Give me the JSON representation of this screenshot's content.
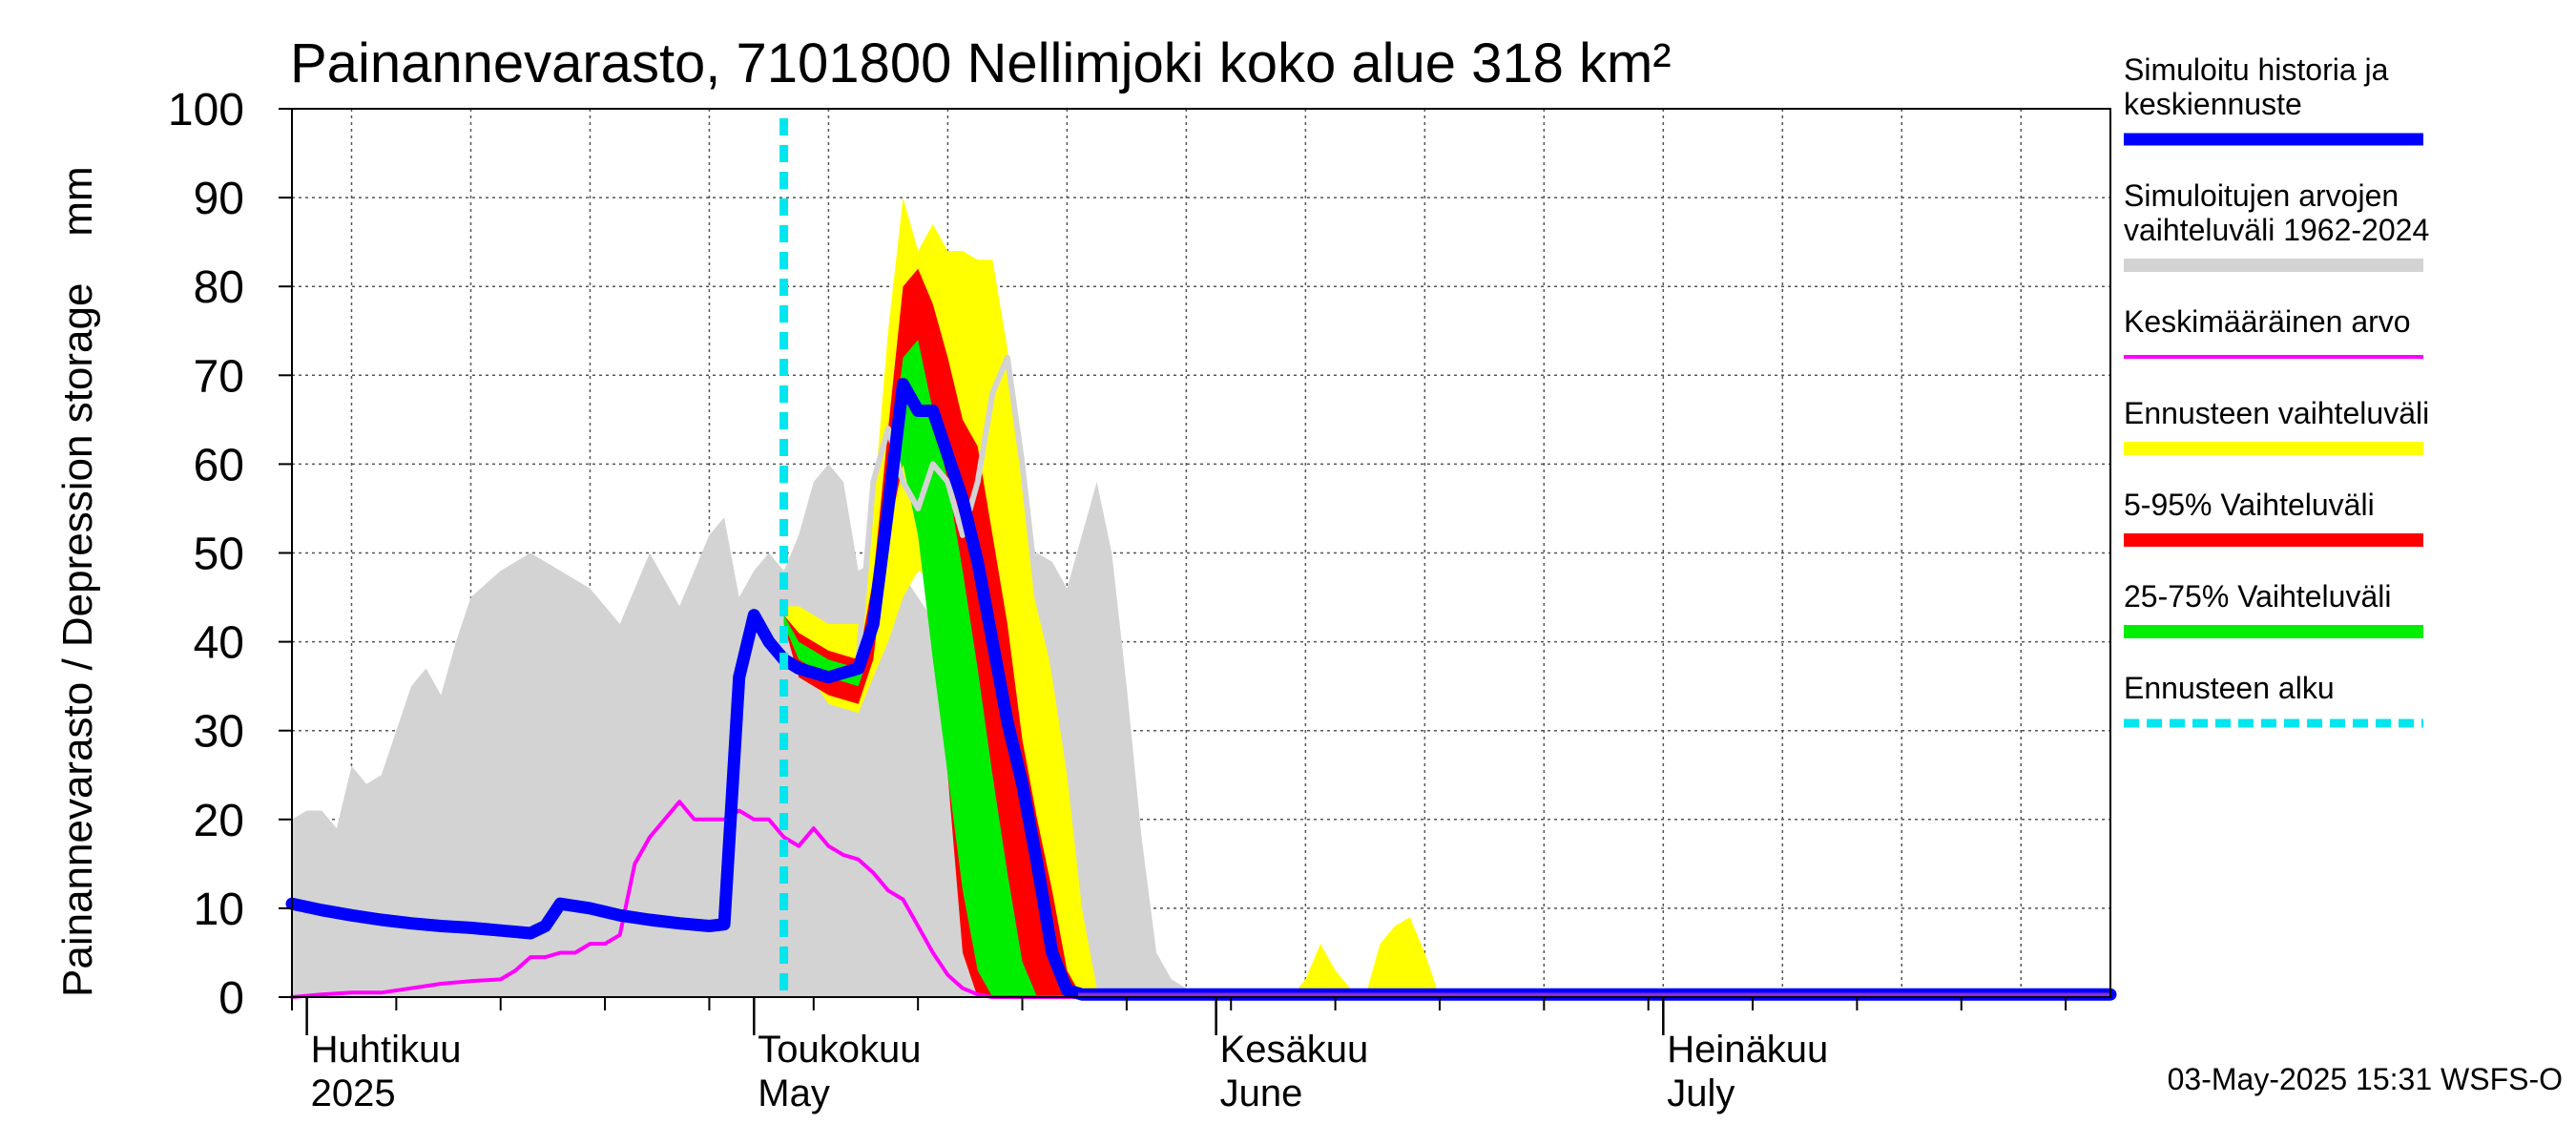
{
  "chart_data": {
    "type": "area",
    "title": "Painannevarasto, 7101800 Nellimjoki koko alue 318 km²",
    "ylabel": "Painannevarasto / Depression storage    mm",
    "xlabel": "",
    "ylim": [
      0,
      100
    ],
    "xlim": [
      "2025-03-31",
      "2025-07-31"
    ],
    "yticks": [
      0,
      10,
      20,
      30,
      40,
      50,
      60,
      70,
      80,
      90,
      100
    ],
    "month_labels": [
      {
        "date": "2025-04-01",
        "line1": "Huhtikuu",
        "line2": "2025"
      },
      {
        "date": "2025-05-01",
        "line1": "Toukokuu",
        "line2": "May"
      },
      {
        "date": "2025-06-01",
        "line1": "Kesäkuu",
        "line2": "June"
      },
      {
        "date": "2025-07-01",
        "line1": "Heinäkuu",
        "line2": "July"
      }
    ],
    "forecast_start": "2025-05-03",
    "grid": true,
    "legend_placement": "right",
    "legend": [
      {
        "label": "Simuloitu historia ja keskiennuste",
        "lines": [
          "Simuloitu historia ja",
          "keskiennuste"
        ],
        "color": "#0000ff",
        "style": "thick"
      },
      {
        "label": "Simuloitujen arvojen vaihteluväli 1962-2024",
        "lines": [
          "Simuloitujen arvojen",
          "vaihteluväli 1962-2024"
        ],
        "color": "#d3d3d3",
        "style": "band"
      },
      {
        "label": "Keskimääräinen arvo",
        "lines": [
          "Keskimääräinen arvo"
        ],
        "color": "#ff00ff",
        "style": "thin"
      },
      {
        "label": "Ennusteen vaihteluväli",
        "lines": [
          "Ennusteen vaihteluväli"
        ],
        "color": "#ffff00",
        "style": "band"
      },
      {
        "label": "5-95% Vaihteluväli",
        "lines": [
          "5-95% Vaihteluväli"
        ],
        "color": "#ff0000",
        "style": "band"
      },
      {
        "label": "25-75% Vaihteluväli",
        "lines": [
          "25-75% Vaihteluväli"
        ],
        "color": "#00ee00",
        "style": "band"
      },
      {
        "label": "Ennusteen alku",
        "lines": [
          "Ennusteen alku"
        ],
        "color": "#00e5ee",
        "style": "dashed"
      }
    ],
    "footer": "03-May-2025 15:31 WSFS-O",
    "series": [
      {
        "name": "Simuloitujen arvojen vaihteluväli 1962-2024",
        "type": "band",
        "color": "#d3d3d3",
        "x": [
          "2025-03-31",
          "2025-04-01",
          "2025-04-02",
          "2025-04-03",
          "2025-04-04",
          "2025-04-05",
          "2025-04-06",
          "2025-04-07",
          "2025-04-08",
          "2025-04-09",
          "2025-04-10",
          "2025-04-11",
          "2025-04-12",
          "2025-04-14",
          "2025-04-16",
          "2025-04-18",
          "2025-04-20",
          "2025-04-22",
          "2025-04-24",
          "2025-04-26",
          "2025-04-28",
          "2025-04-29",
          "2025-04-30",
          "2025-05-01",
          "2025-05-02",
          "2025-05-03",
          "2025-05-04",
          "2025-05-05",
          "2025-05-06",
          "2025-05-07",
          "2025-05-08",
          "2025-05-10",
          "2025-05-12",
          "2025-05-14",
          "2025-05-16",
          "2025-05-18",
          "2025-05-20",
          "2025-05-21",
          "2025-05-22",
          "2025-05-23",
          "2025-05-24",
          "2025-05-25",
          "2025-05-26",
          "2025-05-27",
          "2025-05-28",
          "2025-05-29",
          "2025-05-30",
          "2025-05-31",
          "2025-06-01",
          "2025-06-02",
          "2025-06-03",
          "2025-06-04",
          "2025-06-05",
          "2025-06-06",
          "2025-06-07",
          "2025-06-08",
          "2025-06-09",
          "2025-06-10",
          "2025-06-11",
          "2025-06-12",
          "2025-06-13",
          "2025-06-14",
          "2025-06-15",
          "2025-06-16",
          "2025-07-31"
        ],
        "upper": [
          20,
          21,
          21,
          19,
          26,
          24,
          25,
          30,
          35,
          37,
          34,
          40,
          45,
          48,
          50,
          48,
          46,
          42,
          50,
          44,
          52,
          54,
          45,
          48,
          50,
          48,
          52,
          58,
          60,
          58,
          48,
          50,
          45,
          40,
          38,
          45,
          50,
          49,
          46,
          52,
          58,
          50,
          35,
          18,
          5,
          2,
          1,
          1,
          1,
          1,
          0,
          0,
          0,
          0,
          0,
          0,
          0,
          0,
          0,
          0,
          0,
          0,
          0,
          0,
          0
        ],
        "lower": [
          0,
          0,
          0,
          0,
          0,
          0,
          0,
          0,
          0,
          0,
          0,
          0,
          0,
          0,
          0,
          0,
          0,
          0,
          0,
          0,
          0,
          0,
          0,
          0,
          0,
          0,
          0,
          0,
          0,
          0,
          0,
          0,
          0,
          0,
          0,
          0,
          0,
          0,
          0,
          0,
          0,
          0,
          0,
          0,
          0,
          0,
          0,
          0,
          0,
          0,
          0,
          0,
          0,
          0,
          0,
          0,
          0,
          0,
          0,
          0,
          0,
          0,
          0,
          0,
          0
        ]
      },
      {
        "name": "Ennusteen vaihteluväli",
        "type": "band",
        "color": "#ffff00",
        "x": [
          "2025-05-03",
          "2025-05-04",
          "2025-05-06",
          "2025-05-08",
          "2025-05-09",
          "2025-05-10",
          "2025-05-11",
          "2025-05-12",
          "2025-05-13",
          "2025-05-14",
          "2025-05-15",
          "2025-05-16",
          "2025-05-17",
          "2025-05-18",
          "2025-05-19",
          "2025-05-20",
          "2025-05-21",
          "2025-05-22",
          "2025-05-23",
          "2025-05-24",
          "2025-05-25",
          "2025-05-26",
          "2025-05-27",
          "2025-05-28",
          "2025-05-29",
          "2025-05-30",
          "2025-05-31",
          "2025-06-01",
          "2025-06-02",
          "2025-06-03",
          "2025-06-04",
          "2025-06-05",
          "2025-06-06",
          "2025-06-07",
          "2025-06-08",
          "2025-06-09",
          "2025-06-10",
          "2025-06-11",
          "2025-06-12",
          "2025-06-13",
          "2025-06-14",
          "2025-06-15",
          "2025-06-16",
          "2025-07-31"
        ],
        "upper": [
          44,
          44,
          42,
          42,
          55,
          75,
          90,
          84,
          87,
          84,
          84,
          83,
          83,
          73,
          57,
          46,
          36,
          25,
          10,
          1,
          0,
          0,
          0,
          0,
          0,
          0,
          0,
          0,
          0,
          0,
          0,
          0,
          0,
          2,
          6,
          3,
          1,
          0,
          6,
          8,
          9,
          5,
          0,
          0
        ],
        "lower": [
          42,
          38,
          33,
          32,
          36,
          40,
          45,
          48,
          47,
          30,
          10,
          2,
          0,
          0,
          0,
          0,
          0,
          0,
          0,
          0,
          0,
          0,
          0,
          0,
          0,
          0,
          0,
          0,
          0,
          0,
          0,
          0,
          0,
          0,
          0,
          0,
          0,
          0,
          0,
          0,
          0,
          0,
          0,
          0
        ]
      },
      {
        "name": "5-95% Vaihteluväli",
        "type": "band",
        "color": "#ff0000",
        "x": [
          "2025-05-03",
          "2025-05-04",
          "2025-05-06",
          "2025-05-08",
          "2025-05-09",
          "2025-05-10",
          "2025-05-11",
          "2025-05-12",
          "2025-05-13",
          "2025-05-14",
          "2025-05-15",
          "2025-05-16",
          "2025-05-17",
          "2025-05-18",
          "2025-05-19",
          "2025-05-20",
          "2025-05-21",
          "2025-05-22",
          "2025-05-23",
          "2025-05-24",
          "2025-05-25",
          "2025-05-26",
          "2025-07-31"
        ],
        "upper": [
          43,
          41,
          39,
          38,
          47,
          64,
          80,
          82,
          78,
          72,
          65,
          62,
          52,
          42,
          29,
          20,
          12,
          3,
          0,
          0,
          0,
          0,
          0
        ],
        "lower": [
          42,
          36,
          34,
          33,
          38,
          52,
          60,
          58,
          42,
          25,
          5,
          0,
          0,
          0,
          0,
          0,
          0,
          0,
          0,
          0,
          0,
          0,
          0
        ]
      },
      {
        "name": "25-75% Vaihteluväli",
        "type": "band",
        "color": "#00ee00",
        "x": [
          "2025-05-03",
          "2025-05-04",
          "2025-05-06",
          "2025-05-08",
          "2025-05-09",
          "2025-05-10",
          "2025-05-11",
          "2025-05-12",
          "2025-05-13",
          "2025-05-14",
          "2025-05-15",
          "2025-05-16",
          "2025-05-17",
          "2025-05-18",
          "2025-05-19",
          "2025-05-20",
          "2025-05-21",
          "2025-05-22",
          "2025-07-31"
        ],
        "upper": [
          43,
          40,
          38,
          37,
          44,
          58,
          72,
          74,
          66,
          58,
          48,
          37,
          25,
          14,
          4,
          0,
          0,
          0,
          0
        ],
        "lower": [
          42,
          38,
          36,
          35,
          40,
          55,
          60,
          52,
          38,
          25,
          12,
          3,
          0,
          0,
          0,
          0,
          0,
          0,
          0
        ]
      },
      {
        "name": "Keskimääräinen arvo",
        "type": "line",
        "color": "#ff00ff",
        "x": [
          "2025-03-31",
          "2025-04-02",
          "2025-04-04",
          "2025-04-06",
          "2025-04-08",
          "2025-04-10",
          "2025-04-12",
          "2025-04-14",
          "2025-04-15",
          "2025-04-16",
          "2025-04-17",
          "2025-04-18",
          "2025-04-19",
          "2025-04-20",
          "2025-04-21",
          "2025-04-22",
          "2025-04-23",
          "2025-04-24",
          "2025-04-25",
          "2025-04-26",
          "2025-04-27",
          "2025-04-28",
          "2025-04-29",
          "2025-04-30",
          "2025-05-01",
          "2025-05-02",
          "2025-05-03",
          "2025-05-04",
          "2025-05-05",
          "2025-05-06",
          "2025-05-07",
          "2025-05-08",
          "2025-05-09",
          "2025-05-10",
          "2025-05-11",
          "2025-05-12",
          "2025-05-13",
          "2025-05-14",
          "2025-05-15",
          "2025-05-16",
          "2025-05-17",
          "2025-05-18",
          "2025-05-19",
          "2025-05-20",
          "2025-05-21",
          "2025-05-22",
          "2025-07-31"
        ],
        "values": [
          0,
          0.3,
          0.5,
          0.5,
          1,
          1.5,
          1.8,
          2,
          3,
          4.5,
          4.5,
          5,
          5,
          6,
          6,
          7,
          15,
          18,
          20,
          22,
          20,
          20,
          20,
          21,
          20,
          20,
          18,
          17,
          19,
          17,
          16,
          15.5,
          14,
          12,
          11,
          8,
          5,
          2.5,
          1,
          0.3,
          0,
          0,
          0,
          0,
          0,
          0,
          0
        ]
      },
      {
        "name": "",
        "type": "line",
        "color": "#d3d3d3",
        "x": [
          "2025-05-08",
          "2025-05-09",
          "2025-05-10",
          "2025-05-11",
          "2025-05-12",
          "2025-05-13",
          "2025-05-14",
          "2025-05-15",
          "2025-05-16",
          "2025-05-17",
          "2025-05-18",
          "2025-05-19",
          "2025-05-20",
          "2025-05-21",
          "2025-05-22",
          "2025-05-23",
          "2025-05-24",
          "2025-05-25",
          "2025-05-26",
          "2025-05-27",
          "2025-05-28",
          "2025-05-29",
          "2025-05-30",
          "2025-05-31",
          "2025-06-01",
          "2025-06-02",
          "2025-06-03",
          "2025-06-04",
          "2025-06-05",
          "2025-06-06",
          "2025-06-07",
          "2025-06-08",
          "2025-06-09",
          "2025-06-10",
          "2025-06-11",
          "2025-06-12",
          "2025-06-13",
          "2025-06-14",
          "2025-06-15",
          "2025-06-16",
          "2025-07-31"
        ],
        "values": [
          38,
          58,
          64,
          58,
          55,
          60,
          58,
          52,
          58,
          68,
          72,
          60,
          45,
          38,
          35,
          37,
          38,
          25,
          10,
          2,
          0,
          0,
          0,
          0,
          0,
          0,
          0,
          0,
          0,
          0,
          0,
          0,
          0,
          0,
          0,
          0,
          0,
          0,
          0,
          0,
          0
        ]
      },
      {
        "name": "Simuloitu historia ja keskiennuste",
        "type": "line",
        "color": "#0000ff",
        "x": [
          "2025-03-31",
          "2025-04-02",
          "2025-04-04",
          "2025-04-06",
          "2025-04-08",
          "2025-04-10",
          "2025-04-12",
          "2025-04-14",
          "2025-04-16",
          "2025-04-17",
          "2025-04-18",
          "2025-04-20",
          "2025-04-22",
          "2025-04-24",
          "2025-04-26",
          "2025-04-28",
          "2025-04-29",
          "2025-04-30",
          "2025-05-01",
          "2025-05-02",
          "2025-05-03",
          "2025-05-04",
          "2025-05-06",
          "2025-05-08",
          "2025-05-09",
          "2025-05-10",
          "2025-05-11",
          "2025-05-12",
          "2025-05-13",
          "2025-05-14",
          "2025-05-15",
          "2025-05-16",
          "2025-05-17",
          "2025-05-18",
          "2025-05-19",
          "2025-05-20",
          "2025-05-21",
          "2025-05-22",
          "2025-05-23",
          "2025-07-31"
        ],
        "values": [
          10.5,
          9.8,
          9.2,
          8.7,
          8.3,
          8,
          7.8,
          7.5,
          7.2,
          8,
          10.5,
          10,
          9.2,
          8.7,
          8.3,
          8,
          8.2,
          36,
          43,
          40,
          38,
          37,
          36,
          37,
          42,
          55,
          69,
          66,
          66,
          61,
          56,
          49,
          40,
          31,
          24,
          15,
          5,
          0.8,
          0.3,
          0.3
        ]
      }
    ]
  }
}
